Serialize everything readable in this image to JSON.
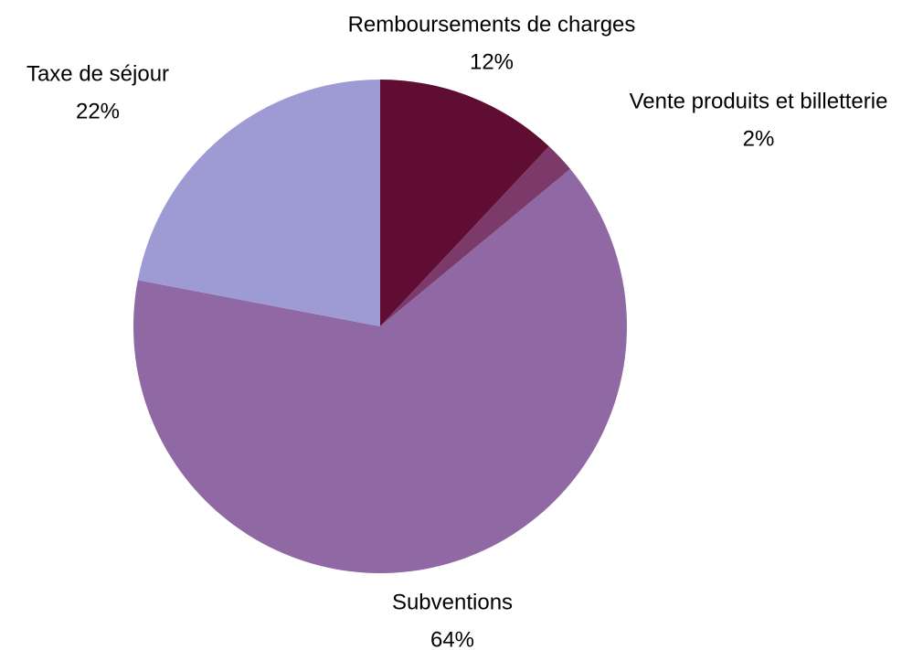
{
  "chart_data": {
    "type": "pie",
    "categories": [
      "Remboursements de charges",
      "Vente produits et billetterie",
      "Subventions",
      "Taxe de séjour"
    ],
    "values": [
      12,
      2,
      64,
      22
    ],
    "value_labels": [
      "12%",
      "2%",
      "64%",
      "22%"
    ],
    "colors": [
      "#600d33",
      "#7b3a6a",
      "#9068a3",
      "#9e9ad4"
    ]
  }
}
